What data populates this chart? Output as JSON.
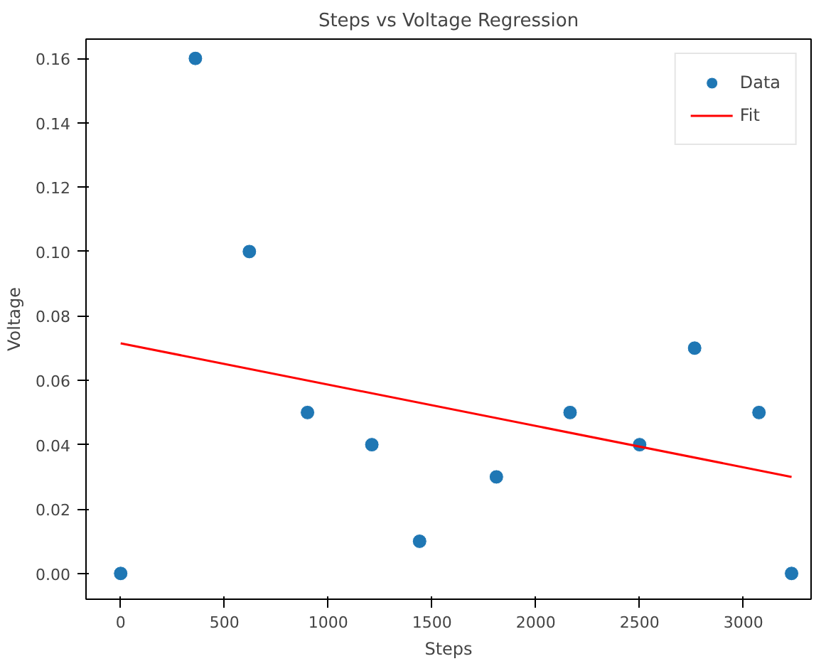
{
  "chart_data": {
    "type": "scatter",
    "title": "Steps vs Voltage Regression",
    "xlabel": "Steps",
    "ylabel": "Voltage",
    "series": [
      {
        "name": "Data",
        "marker": "circle",
        "color": "#1f77b4",
        "x": [
          0,
          360,
          620,
          900,
          1210,
          1440,
          1810,
          2165,
          2500,
          2765,
          3075,
          3232
        ],
        "values": [
          0,
          0.16,
          0.1,
          0.05,
          0.04,
          0.01,
          0.03,
          0.05,
          0.04,
          0.07,
          0.05,
          0
        ]
      },
      {
        "name": "Fit",
        "type": "line",
        "marker": "none",
        "color": "#ff0000",
        "x": [
          0,
          3232
        ],
        "values": [
          0.0715,
          0.03
        ]
      }
    ],
    "xlim": [
      -167,
      3326
    ],
    "ylim": [
      -0.008,
      0.166
    ],
    "xticks": [
      0,
      500,
      1000,
      1500,
      2000,
      2500,
      3000
    ],
    "yticks": [
      {
        "value": 0,
        "label": "0.00"
      },
      {
        "value": 0.02,
        "label": "0.02"
      },
      {
        "value": 0.04,
        "label": "0.04"
      },
      {
        "value": 0.06,
        "label": "0.06"
      },
      {
        "value": 0.08,
        "label": "0.08"
      },
      {
        "value": 0.1,
        "label": "0.10"
      },
      {
        "value": 0.12,
        "label": "0.12"
      },
      {
        "value": 0.14,
        "label": "0.14"
      },
      {
        "value": 0.16,
        "label": "0.16"
      }
    ],
    "legend": "top right",
    "grid": false
  }
}
